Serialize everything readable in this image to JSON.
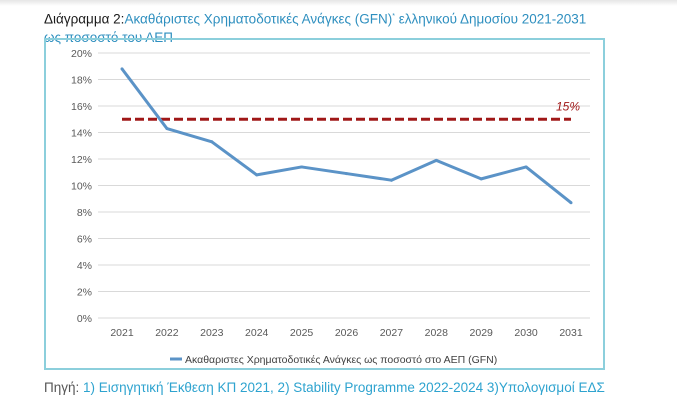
{
  "header": {
    "label": "Διάγραμμα 2:",
    "title_line1": "Ακαθάριστες Χρηματοδοτικές Ανάγκες (GFN)",
    "superscript": "*",
    "title_line1_rest": " ελληνικού Δημοσίου 2021-2031",
    "title_line2": "ως ποσοστό του ΑΕΠ"
  },
  "source": {
    "label": "Πηγή:",
    "text": " 1) Εισηγητική Έκθεση ΚΠ 2021, 2) Stability Programme 2022-2024 3)Υπολογισμοί ΕΔΣ"
  },
  "chart_data": {
    "type": "line",
    "title": "",
    "xlabel": "",
    "ylabel": "",
    "categories": [
      "2021",
      "2022",
      "2023",
      "2024",
      "2025",
      "2026",
      "2027",
      "2028",
      "2029",
      "2030",
      "2031"
    ],
    "series": [
      {
        "name": "Ακαθαριστες Χρηματοδοτικές Ανάγκες ως ποσοστό στο ΑΕΠ (GFN)",
        "values": [
          18.8,
          14.3,
          13.3,
          10.8,
          11.4,
          10.9,
          10.4,
          11.9,
          10.5,
          11.4,
          8.7
        ],
        "color": "#5b93c7"
      }
    ],
    "reference_line": {
      "value": 15,
      "label": "15%",
      "color": "#a01818",
      "style": "dashed"
    },
    "ylim": [
      0,
      20
    ],
    "yticks": [
      0,
      2,
      4,
      6,
      8,
      10,
      12,
      14,
      16,
      18,
      20
    ],
    "ytick_labels": [
      "0%",
      "2%",
      "4%",
      "6%",
      "8%",
      "10%",
      "12%",
      "14%",
      "16%",
      "18%",
      "20%"
    ],
    "grid": true,
    "legend_position": "bottom"
  }
}
